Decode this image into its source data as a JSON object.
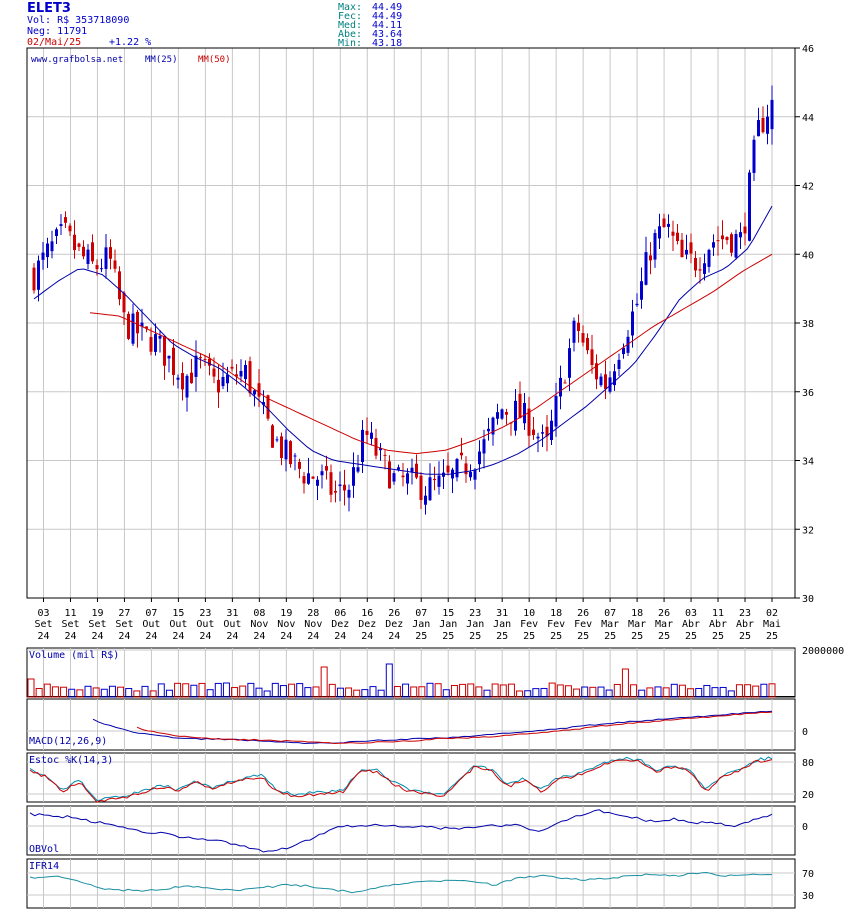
{
  "header": {
    "ticker": "ELET3",
    "vol": "Vol: R$ 353718090",
    "neg": "Neg: 11791",
    "date": "02/Mai/25",
    "change": "+1.22 %",
    "stats": [
      {
        "label": "Max:",
        "value": "44.49"
      },
      {
        "label": "Fec:",
        "value": "44.49"
      },
      {
        "label": "Med:",
        "value": "44.11"
      },
      {
        "label": "Abe:",
        "value": "43.64"
      },
      {
        "label": "Min:",
        "value": "43.18"
      }
    ]
  },
  "colors": {
    "up": "#0000cc",
    "down": "#cc0000",
    "ma25": "#0000aa",
    "ma50": "#cc0000",
    "grid": "#c8c8c8",
    "teal": "#008080"
  },
  "chart_data": {
    "type": "candlestick",
    "legend": [
      "www.grafbolsa.net",
      "MM(25)",
      "MM(50)"
    ],
    "y_ticks": [
      30,
      32,
      34,
      36,
      38,
      40,
      42,
      44,
      46
    ],
    "ylim": [
      30,
      46
    ],
    "x_labels": [
      {
        "day": "03",
        "mon": "Set",
        "yr": "24"
      },
      {
        "day": "11",
        "mon": "Set",
        "yr": "24"
      },
      {
        "day": "19",
        "mon": "Set",
        "yr": "24"
      },
      {
        "day": "27",
        "mon": "Set",
        "yr": "24"
      },
      {
        "day": "07",
        "mon": "Out",
        "yr": "24"
      },
      {
        "day": "15",
        "mon": "Out",
        "yr": "24"
      },
      {
        "day": "23",
        "mon": "Out",
        "yr": "24"
      },
      {
        "day": "31",
        "mon": "Out",
        "yr": "24"
      },
      {
        "day": "08",
        "mon": "Nov",
        "yr": "24"
      },
      {
        "day": "19",
        "mon": "Nov",
        "yr": "24"
      },
      {
        "day": "28",
        "mon": "Nov",
        "yr": "24"
      },
      {
        "day": "06",
        "mon": "Dez",
        "yr": "24"
      },
      {
        "day": "16",
        "mon": "Dez",
        "yr": "24"
      },
      {
        "day": "26",
        "mon": "Dez",
        "yr": "24"
      },
      {
        "day": "07",
        "mon": "Jan",
        "yr": "25"
      },
      {
        "day": "15",
        "mon": "Jan",
        "yr": "25"
      },
      {
        "day": "23",
        "mon": "Jan",
        "yr": "25"
      },
      {
        "day": "31",
        "mon": "Jan",
        "yr": "25"
      },
      {
        "day": "10",
        "mon": "Fev",
        "yr": "25"
      },
      {
        "day": "18",
        "mon": "Fev",
        "yr": "25"
      },
      {
        "day": "26",
        "mon": "Fev",
        "yr": "25"
      },
      {
        "day": "07",
        "mon": "Mar",
        "yr": "25"
      },
      {
        "day": "18",
        "mon": "Mar",
        "yr": "25"
      },
      {
        "day": "26",
        "mon": "Mar",
        "yr": "25"
      },
      {
        "day": "03",
        "mon": "Abr",
        "yr": "25"
      },
      {
        "day": "11",
        "mon": "Abr",
        "yr": "25"
      },
      {
        "day": "23",
        "mon": "Abr",
        "yr": "25"
      },
      {
        "day": "02",
        "mon": "Mai",
        "yr": "25"
      }
    ],
    "close_anchors": [
      39.4,
      40.1,
      40.6,
      40.0,
      39.6,
      39.9,
      38.0,
      37.7,
      37.5,
      36.9,
      36.4,
      36.8,
      36.2,
      36.4,
      36.6,
      35.5,
      34.6,
      34.0,
      33.6,
      33.5,
      33.0,
      33.3,
      34.8,
      34.0,
      33.4,
      33.4,
      33.2,
      33.3,
      33.6,
      34.0,
      34.5,
      35.5,
      35.4,
      35.1,
      34.3,
      36.2,
      38.0,
      36.7,
      36.2,
      37.5,
      38.5,
      40.3,
      40.8,
      39.8,
      39.8,
      40.4,
      40.5,
      40.4,
      43.5,
      44.49
    ],
    "ma25_anchors": [
      38.7,
      39.2,
      39.6,
      39.4,
      38.8,
      38.1,
      37.4,
      37.0,
      36.7,
      36.2,
      35.6,
      34.9,
      34.3,
      34.0,
      33.9,
      33.8,
      33.7,
      33.6,
      33.6,
      33.7,
      33.9,
      34.2,
      34.6,
      35.1,
      35.6,
      36.2,
      36.8,
      37.7,
      38.7,
      39.3,
      39.6,
      40.2,
      41.4
    ],
    "ma50_anchors": [
      38.3,
      38.2,
      37.8,
      37.4,
      37.0,
      36.4,
      35.8,
      35.4,
      35.0,
      34.6,
      34.3,
      34.2,
      34.3,
      34.6,
      35.0,
      35.5,
      36.1,
      36.7,
      37.3,
      37.9,
      38.4,
      38.9,
      39.5,
      40.0
    ],
    "volume": {
      "label": "Volume (mil R$)",
      "y_ticks": [
        "2000000"
      ]
    },
    "macd": {
      "label": "MACD(12,26,9)",
      "y_ticks": [
        "0"
      ]
    },
    "stoch": {
      "label": "Estoc %K(14,3)",
      "y_ticks": [
        "80",
        "20"
      ]
    },
    "obv": {
      "label": "OBVol",
      "y_ticks": [
        "0"
      ]
    },
    "ifr": {
      "label": "IFR14",
      "y_ticks": [
        "70",
        "30"
      ]
    }
  }
}
